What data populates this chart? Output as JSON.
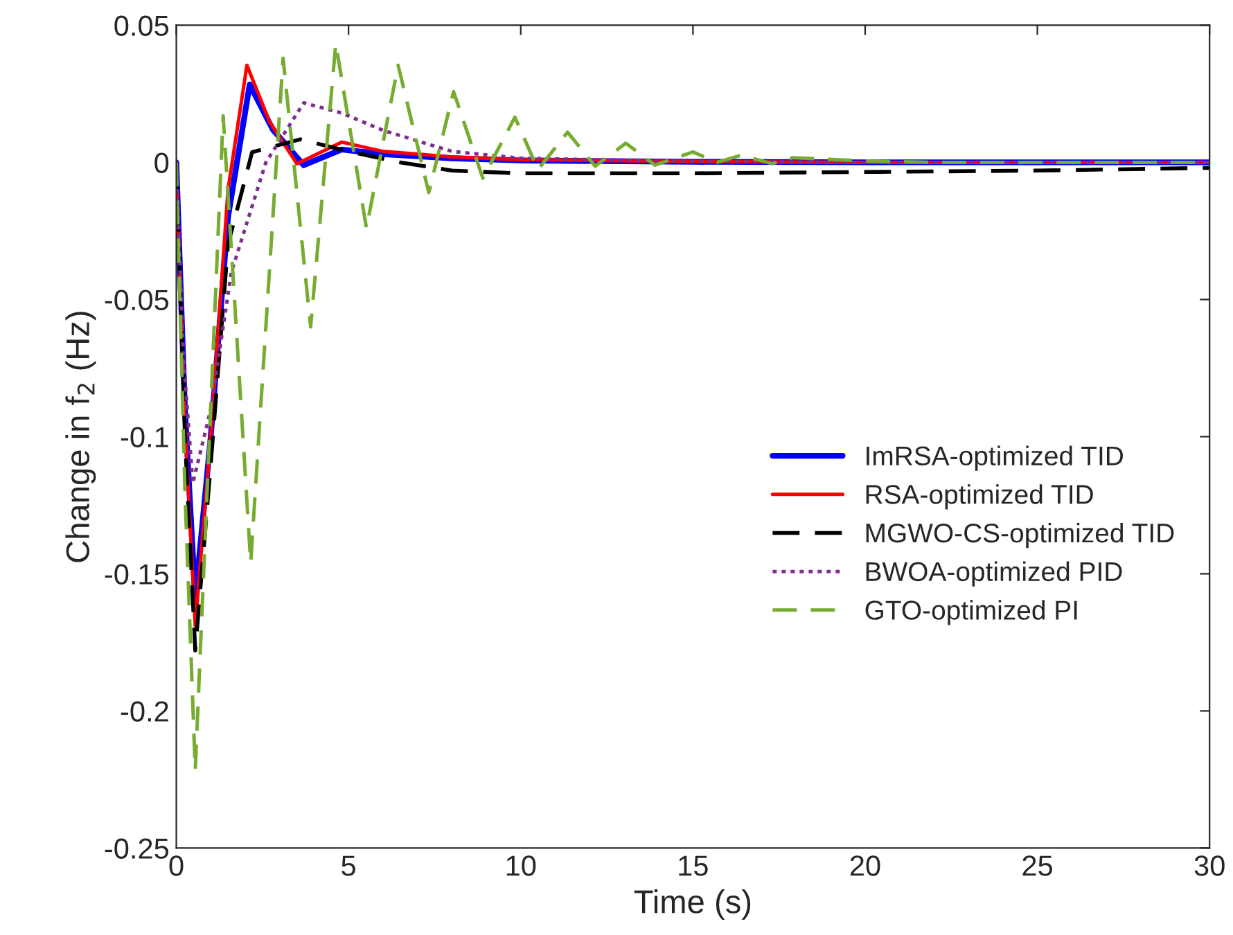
{
  "chart_data": {
    "type": "line",
    "xlabel": "Time (s)",
    "ylabel": "Change in f$_{2}$ (Hz)",
    "xlim": [
      0,
      30
    ],
    "ylim": [
      -0.25,
      0.05
    ],
    "xticks": [
      0,
      5,
      10,
      15,
      20,
      25,
      30
    ],
    "yticks": [
      -0.25,
      -0.2,
      -0.15,
      -0.1,
      -0.05,
      0,
      0.05
    ],
    "grid": false,
    "legend": "right",
    "series": [
      {
        "name": "ImRSA-optimized TID",
        "color": "#0000ff",
        "line_style": "solid",
        "x": [
          0,
          0.25,
          0.55,
          1.0,
          1.5,
          2.13,
          2.8,
          3.7,
          4.8,
          6,
          8,
          10,
          15,
          20,
          30
        ],
        "values": [
          0,
          -0.09,
          -0.159,
          -0.1,
          -0.02,
          0.0284,
          0.012,
          -0.001,
          0.0047,
          0.003,
          0.0015,
          0.0007,
          0.0002,
          0,
          0
        ]
      },
      {
        "name": "RSA-optimized TID",
        "color": "#ff0000",
        "line_style": "solid",
        "x": [
          0,
          0.25,
          0.55,
          1.0,
          1.5,
          2.05,
          2.7,
          3.5,
          4.8,
          6,
          8,
          10,
          15,
          20,
          30
        ],
        "values": [
          0,
          -0.095,
          -0.169,
          -0.1,
          -0.01,
          0.0354,
          0.015,
          -0.0005,
          0.0074,
          0.004,
          0.002,
          0.001,
          0.0003,
          0,
          0
        ]
      },
      {
        "name": "MGWO-CS-optimized TID",
        "color": "#000000",
        "line_style": "dashed",
        "x": [
          0,
          0.25,
          0.55,
          1.0,
          1.5,
          2.2,
          3.6,
          5,
          6.5,
          8,
          10,
          15,
          20,
          25,
          30
        ],
        "values": [
          0,
          -0.1,
          -0.178,
          -0.11,
          -0.03,
          0.0037,
          0.0084,
          0.004,
          0.0,
          -0.003,
          -0.004,
          -0.004,
          -0.0035,
          -0.003,
          -0.002
        ]
      },
      {
        "name": "BWOA-optimized PID",
        "color": "#7e2f8e",
        "line_style": "dotted",
        "x": [
          0,
          0.2,
          0.48,
          1.0,
          1.6,
          2.6,
          3.7,
          4.8,
          6,
          8,
          10,
          15,
          20,
          30
        ],
        "values": [
          0,
          -0.07,
          -0.117,
          -0.09,
          -0.04,
          0.0,
          0.0217,
          0.018,
          0.0117,
          0.004,
          0.0015,
          0.0003,
          0,
          0
        ]
      },
      {
        "name": "GTO-optimized PI",
        "color": "#77ac30",
        "line_style": "dashed",
        "x": [
          0,
          0.25,
          0.55,
          1.36,
          2.16,
          3.1,
          3.9,
          4.63,
          5.52,
          6.44,
          7.33,
          8.05,
          8.9,
          9.83,
          10.5,
          11.36,
          12.16,
          13.05,
          13.9,
          15,
          15.7,
          16.4,
          17.3,
          17.9,
          20,
          22,
          30
        ],
        "values": [
          0,
          -0.12,
          -0.2216,
          0.017,
          -0.146,
          0.038,
          -0.06,
          0.0433,
          -0.024,
          0.0354,
          -0.011,
          0.0258,
          -0.0058,
          0.0165,
          -0.0026,
          0.011,
          -0.0014,
          0.007,
          -0.001,
          0.0038,
          0.0,
          0.0026,
          -0.0005,
          0.0017,
          0.0005,
          0,
          0
        ]
      }
    ]
  }
}
